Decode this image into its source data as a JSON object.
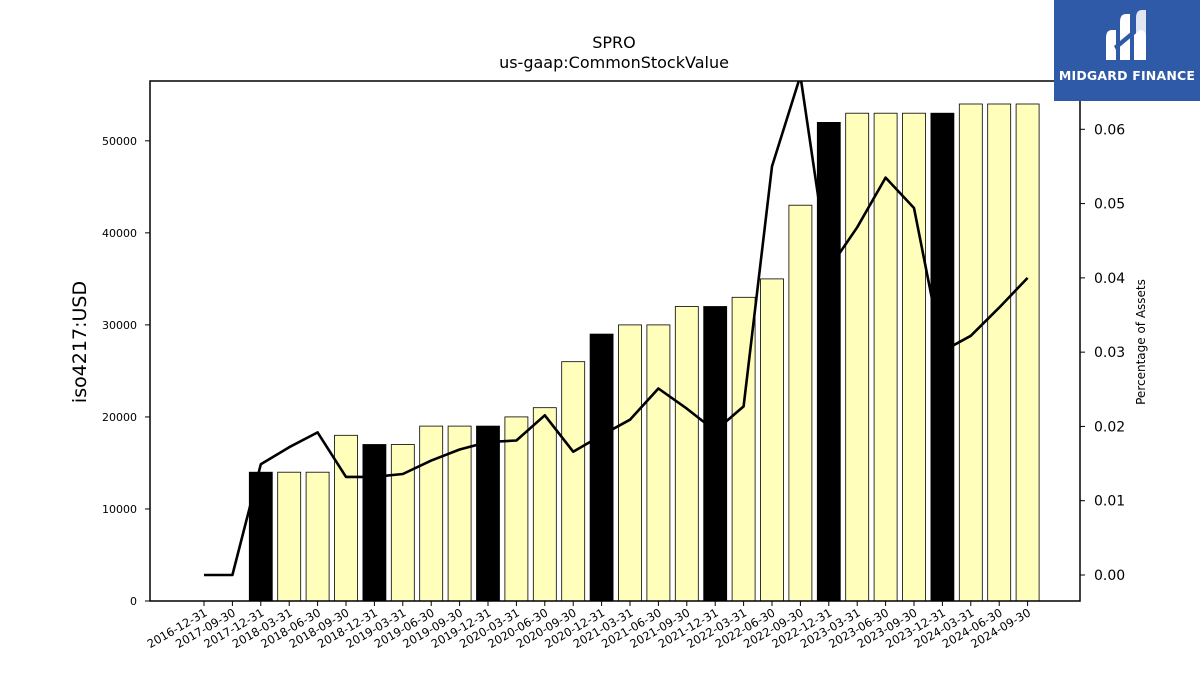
{
  "chart_data": {
    "type": "bar",
    "title": "SPRO",
    "subtitle": "us-gaap:CommonStockValue",
    "ylabel": "iso4217:USD",
    "y2label": "Percentage of Assets",
    "ylim": [
      0,
      56500
    ],
    "y2lim": [
      -0.0035,
      0.0665
    ],
    "yticks": [
      0,
      10000,
      20000,
      30000,
      40000,
      50000
    ],
    "y2ticks": [
      "0.00",
      "0.01",
      "0.02",
      "0.03",
      "0.04",
      "0.05",
      "0.06"
    ],
    "y2tick_values": [
      0.0,
      0.01,
      0.02,
      0.03,
      0.04,
      0.05,
      0.06
    ],
    "categories": [
      "2016-12-31",
      "2017-09-30",
      "2017-12-31",
      "2018-03-31",
      "2018-06-30",
      "2018-09-30",
      "2018-12-31",
      "2019-03-31",
      "2019-06-30",
      "2019-09-30",
      "2019-12-31",
      "2020-03-31",
      "2020-06-30",
      "2020-09-30",
      "2020-12-31",
      "2021-03-31",
      "2021-06-30",
      "2021-09-30",
      "2021-12-31",
      "2022-03-31",
      "2022-06-30",
      "2022-09-30",
      "2022-12-31",
      "2023-03-31",
      "2023-06-30",
      "2023-09-30",
      "2023-12-31",
      "2024-03-31",
      "2024-06-30",
      "2024-09-30"
    ],
    "series": [
      {
        "values": [
          null,
          null,
          14000,
          14000,
          14000,
          18000,
          17000,
          17000,
          19000,
          19000,
          19000,
          20000,
          21000,
          26000,
          29000,
          30000,
          30000,
          32000,
          32000,
          33000,
          35000,
          43000,
          52000,
          53000,
          53000,
          53000,
          53000,
          54000,
          54000,
          54000
        ],
        "annual": [
          false,
          false,
          true,
          false,
          false,
          false,
          true,
          false,
          false,
          false,
          true,
          false,
          false,
          false,
          true,
          false,
          false,
          false,
          true,
          false,
          false,
          false,
          true,
          false,
          false,
          false,
          true,
          false,
          false,
          false
        ]
      },
      {
        "axis": "right",
        "type": "line",
        "values": [
          0.0,
          0.0,
          0.0149,
          0.0172,
          0.0192,
          0.0132,
          0.0132,
          0.0136,
          0.0154,
          0.0169,
          0.0179,
          0.0181,
          0.0215,
          0.0166,
          0.0188,
          0.0209,
          0.0251,
          0.0224,
          0.0194,
          0.0227,
          0.055,
          0.0672,
          0.0412,
          0.0468,
          0.0535,
          0.0494,
          0.0301,
          0.0322,
          0.036,
          0.04
        ]
      }
    ],
    "colors": {
      "annual_bar": "#000000",
      "quarter_bar": "#ffffbb",
      "bar_edge": "#000000",
      "line": "#000000"
    },
    "grid": false,
    "legend": "none"
  },
  "logo": {
    "text": "MIDGARD FINANCE",
    "icon": "midgard-logo-icon",
    "bg": "#2f5aa8"
  }
}
